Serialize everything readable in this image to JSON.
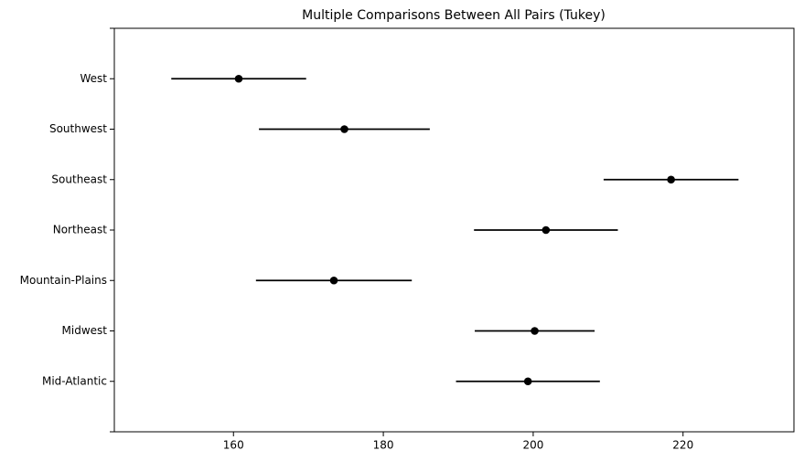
{
  "chart_data": {
    "type": "errorbar",
    "title": "Multiple Comparisons Between All Pairs (Tukey)",
    "categories": [
      "West",
      "Southwest",
      "Southeast",
      "Northeast",
      "Mountain-Plains",
      "Midwest",
      "Mid-Atlantic"
    ],
    "values": [
      160.7,
      174.8,
      218.4,
      201.7,
      173.4,
      200.2,
      199.3
    ],
    "errors": [
      9.0,
      11.4,
      9.0,
      9.6,
      10.4,
      8.0,
      9.6
    ],
    "color": "#000000",
    "xlim": [
      144.1,
      234.8
    ],
    "xticks": [
      160,
      180,
      200,
      220
    ]
  }
}
